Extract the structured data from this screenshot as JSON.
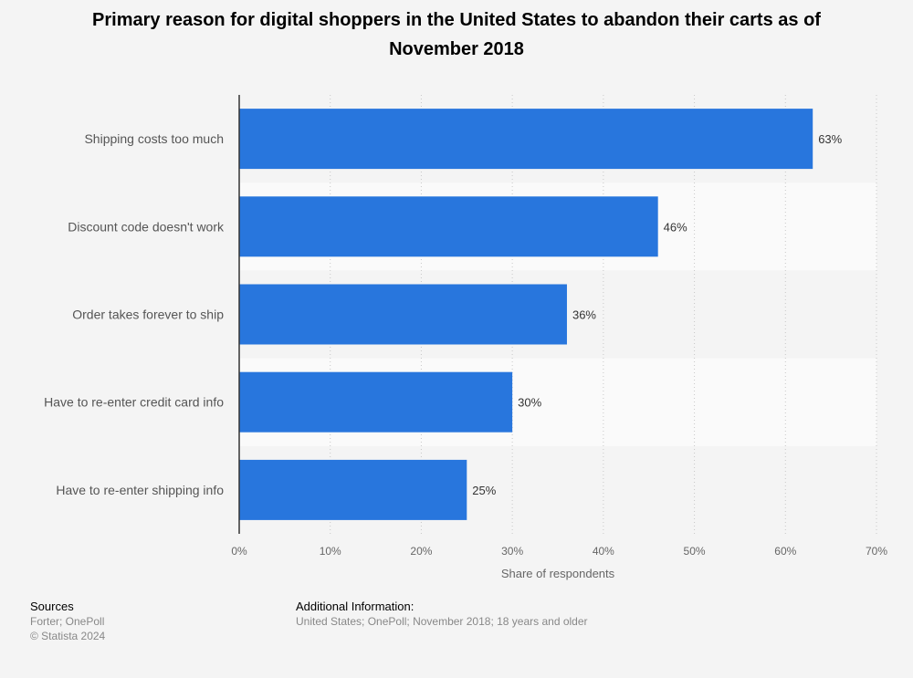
{
  "chart_data": {
    "type": "bar",
    "orientation": "horizontal",
    "title": "Primary reason for digital shoppers in the United States to abandon their carts as of November 2018",
    "categories": [
      "Shipping costs too much",
      "Discount code doesn't work",
      "Order takes forever to ship",
      "Have to re-enter credit card info",
      "Have to re-enter shipping info"
    ],
    "values": [
      63,
      46,
      36,
      30,
      25
    ],
    "value_labels": [
      "63%",
      "46%",
      "36%",
      "30%",
      "25%"
    ],
    "xlabel": "Share of respondents",
    "ylabel": "",
    "xlim": [
      0,
      70
    ],
    "x_ticks": [
      0,
      10,
      20,
      30,
      40,
      50,
      60,
      70
    ],
    "x_tick_labels": [
      "0%",
      "10%",
      "20%",
      "30%",
      "40%",
      "50%",
      "60%",
      "70%"
    ],
    "grid": true,
    "legend": "none",
    "bar_color": "#2876dd"
  },
  "footer": {
    "sources_heading": "Sources",
    "sources_line1": "Forter; OnePoll",
    "sources_line2": "© Statista 2024",
    "additional_heading": "Additional Information:",
    "additional_text": "United States; OnePoll; November 2018; 18 years and older"
  }
}
